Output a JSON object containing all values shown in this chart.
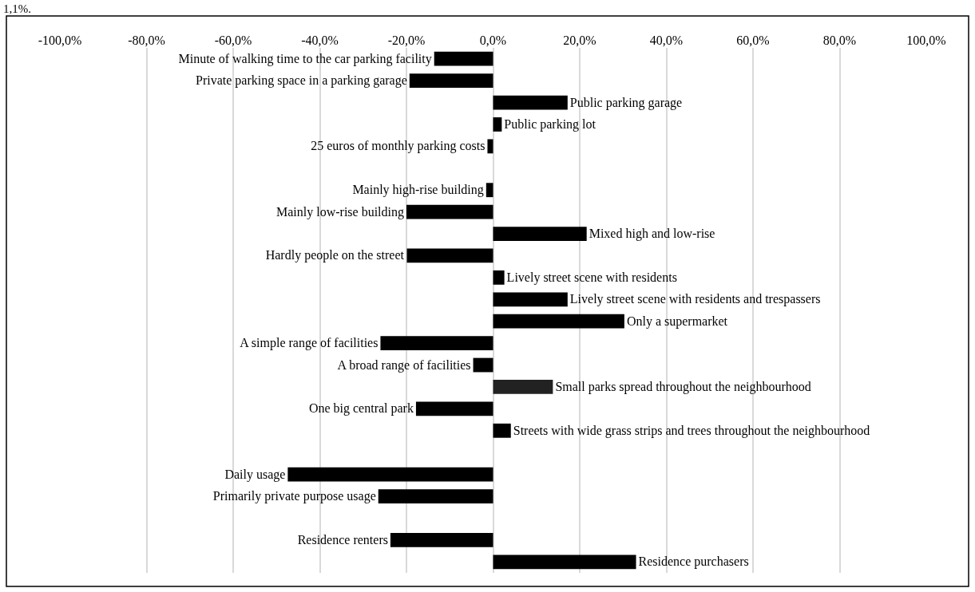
{
  "chart_data": {
    "type": "bar",
    "orientation": "horizontal",
    "annotations": [
      "1,1%."
    ],
    "categories": [
      "Minute of walking time to the car parking facility",
      "Private parking space in a parking garage",
      "Public parking garage",
      "Public parking lot",
      "25 euros of monthly parking costs",
      null,
      "Mainly high-rise building",
      "Mainly low-rise building",
      "Mixed high and low-rise",
      "Hardly people on the street",
      "Lively street scene with residents",
      "Lively street scene with residents and trespassers",
      "Only a supermarket",
      "A simple range of facilities",
      "A broad range of facilities",
      "Small parks spread throughout the neighbourhood",
      "One big central park",
      "Streets with wide grass strips and trees throughout the neighbourhood",
      null,
      "Daily usage",
      "Primarily private purpose usage",
      null,
      "Residence renters",
      "Residence purchasers"
    ],
    "values": [
      -13.6,
      -19.3,
      17.2,
      2.0,
      -1.3,
      null,
      -1.6,
      -20.0,
      21.6,
      -19.9,
      2.6,
      17.2,
      30.3,
      -26.0,
      -4.6,
      13.8,
      -17.8,
      4.1,
      null,
      -47.4,
      -26.5,
      null,
      -23.7,
      33.0
    ],
    "colors": [
      "#000000",
      "#000000",
      "#000000",
      "#000000",
      "#000000",
      "#000000",
      "#000000",
      "#000000",
      "#000000",
      "#000000",
      "#000000",
      "#000000",
      "#000000",
      "#000000",
      "#000000",
      "#222222",
      "#000000",
      "#000000",
      "#000000",
      "#000000",
      "#000000",
      "#000000",
      "#000000",
      "#000000"
    ],
    "xlim": [
      -100,
      100
    ],
    "xticks": [
      {
        "value": -100,
        "label": "-100,0%"
      },
      {
        "value": -80,
        "label": "-80,0%"
      },
      {
        "value": -60,
        "label": "-60,0%"
      },
      {
        "value": -40,
        "label": "-40,0%"
      },
      {
        "value": -20,
        "label": "-20,0%"
      },
      {
        "value": 0,
        "label": "0,0%"
      },
      {
        "value": 20,
        "label": "20,0%"
      },
      {
        "value": 40,
        "label": "40,0%"
      },
      {
        "value": 60,
        "label": "60,0%"
      },
      {
        "value": 80,
        "label": "80,0%"
      },
      {
        "value": 100,
        "label": "100,0%"
      }
    ],
    "tick_labels": "x",
    "grid": "x"
  }
}
